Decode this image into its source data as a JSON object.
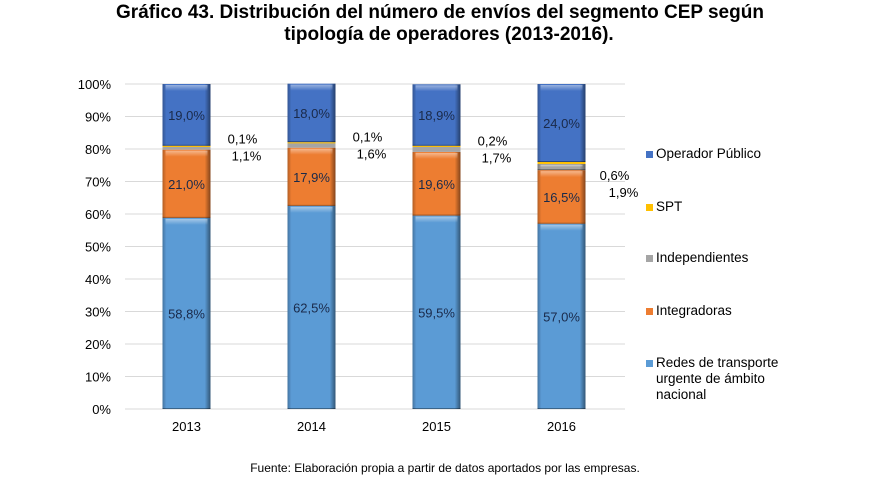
{
  "title_line1": "Gráfico 43. Distribución del número de envíos del segmento CEP según",
  "title_line2": "tipología de operadores (2013-2016).",
  "source": "Fuente: Elaboración propia a partir de datos aportados por las empresas.",
  "chart_data": {
    "type": "bar",
    "stacked": true,
    "percent": true,
    "title": "Gráfico 43. Distribución del número de envíos del segmento CEP según tipología de operadores (2013-2016).",
    "xlabel": "",
    "ylabel": "",
    "ylim": [
      0,
      100
    ],
    "yticks": [
      "0%",
      "10%",
      "20%",
      "30%",
      "40%",
      "50%",
      "60%",
      "70%",
      "80%",
      "90%",
      "100%"
    ],
    "grid": true,
    "legend_position": "right",
    "categories": [
      "2013",
      "2014",
      "2015",
      "2016"
    ],
    "series": [
      {
        "name": "Redes de transporte urgente de ámbito nacional",
        "color": "#5b9bd5",
        "values": [
          58.8,
          62.5,
          59.5,
          57.0
        ],
        "labels": [
          "58,8%",
          "62,5%",
          "59,5%",
          "57,0%"
        ]
      },
      {
        "name": "Integradoras",
        "color": "#ed7d31",
        "values": [
          21.0,
          17.9,
          19.6,
          16.5
        ],
        "labels": [
          "21,0%",
          "17,9%",
          "19,6%",
          "16,5%"
        ]
      },
      {
        "name": "Independientes",
        "color": "#a5a5a5",
        "values": [
          1.1,
          1.6,
          1.7,
          1.9
        ],
        "labels": [
          "1,1%",
          "1,6%",
          "1,7%",
          "1,9%"
        ]
      },
      {
        "name": "SPT",
        "color": "#ffc000",
        "values": [
          0.1,
          0.1,
          0.2,
          0.6
        ],
        "labels": [
          "0,1%",
          "0,1%",
          "0,2%",
          "0,6%"
        ]
      },
      {
        "name": "Operador Público",
        "color": "#4472c4",
        "values": [
          19.0,
          18.0,
          18.9,
          24.0
        ],
        "labels": [
          "19,0%",
          "18,0%",
          "18,9%",
          "24,0%"
        ]
      }
    ],
    "legend_order": [
      "Operador Público",
      "SPT",
      "Independientes",
      "Integradoras",
      "Redes de transporte urgente de ámbito nacional"
    ]
  }
}
